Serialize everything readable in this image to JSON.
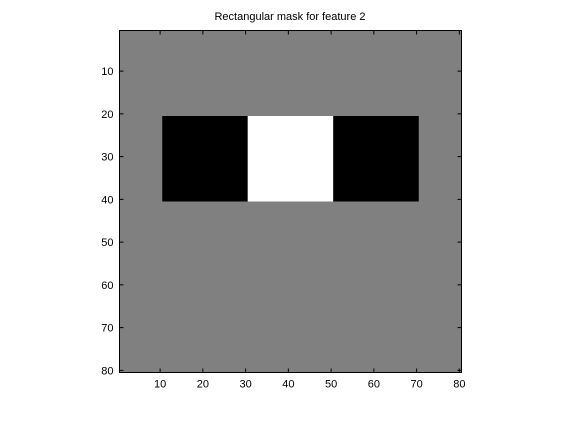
{
  "chart_data": {
    "type": "heatmap",
    "title": "Rectangular mask for feature 2",
    "xlabel": "",
    "ylabel": "",
    "xlim": [
      0.5,
      80.5
    ],
    "ylim": [
      0.5,
      80.5
    ],
    "y_axis_reversed": true,
    "xticks": [
      10,
      20,
      30,
      40,
      50,
      60,
      70,
      80
    ],
    "yticks": [
      10,
      20,
      30,
      40,
      50,
      60,
      70,
      80
    ],
    "grid": false,
    "colormap": "gray",
    "background": {
      "value": 0,
      "color": "#808080"
    },
    "regions": [
      {
        "rows": [
          21,
          40
        ],
        "cols": [
          11,
          30
        ],
        "value": -1,
        "color": "#000000"
      },
      {
        "rows": [
          21,
          40
        ],
        "cols": [
          31,
          50
        ],
        "value": 1,
        "color": "#ffffff"
      },
      {
        "rows": [
          21,
          40
        ],
        "cols": [
          51,
          70
        ],
        "value": -1,
        "color": "#000000"
      }
    ]
  }
}
